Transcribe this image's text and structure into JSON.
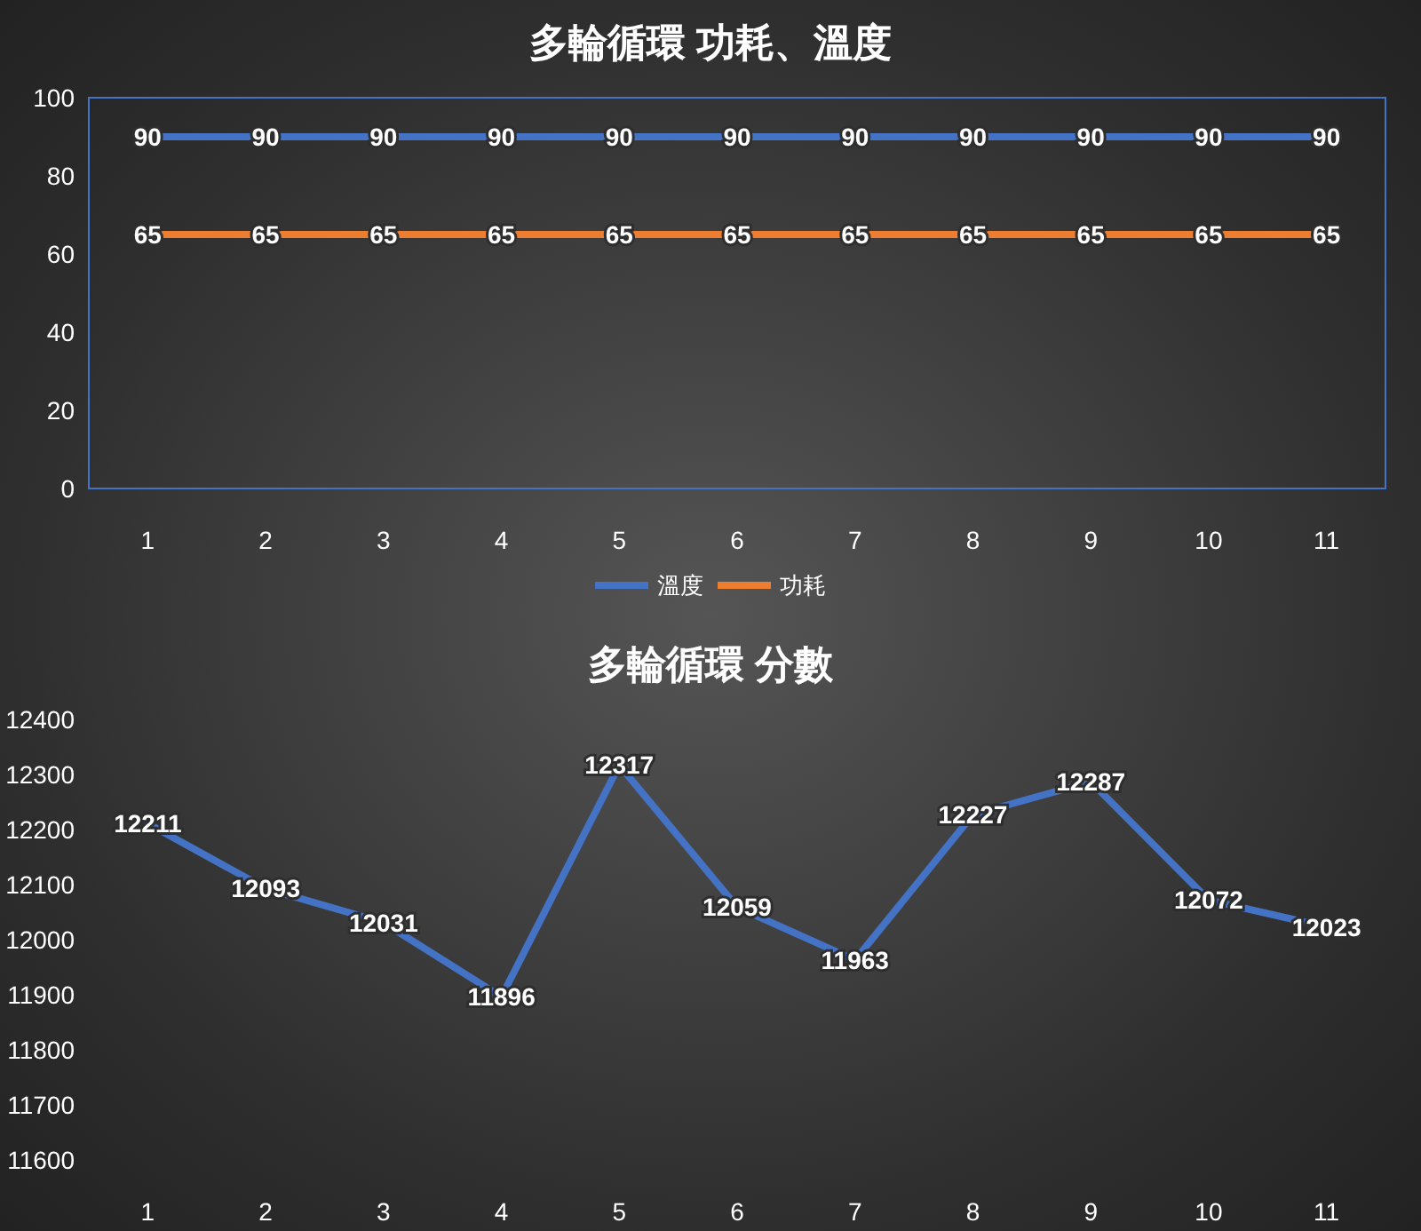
{
  "chart_data": [
    {
      "type": "line",
      "title": "多輪循環 功耗、溫度",
      "categories": [
        "1",
        "2",
        "3",
        "4",
        "5",
        "6",
        "7",
        "8",
        "9",
        "10",
        "11"
      ],
      "series": [
        {
          "name": "溫度",
          "color": "#4472c4",
          "values": [
            90,
            90,
            90,
            90,
            90,
            90,
            90,
            90,
            90,
            90,
            90
          ]
        },
        {
          "name": "功耗",
          "color": "#ed7d31",
          "values": [
            65,
            65,
            65,
            65,
            65,
            65,
            65,
            65,
            65,
            65,
            65
          ]
        }
      ],
      "ylim": [
        0,
        100
      ],
      "yticks": [
        0,
        20,
        40,
        60,
        80,
        100
      ],
      "data_labels": true,
      "legend": "bottom",
      "marker": "none",
      "line_style": "solid",
      "grid": false
    },
    {
      "type": "line",
      "title": "多輪循環 分數",
      "categories": [
        "1",
        "2",
        "3",
        "4",
        "5",
        "6",
        "7",
        "8",
        "9",
        "10",
        "11"
      ],
      "series": [
        {
          "color": "#4472c4",
          "values": [
            12211,
            12093,
            12031,
            11896,
            12317,
            12059,
            11963,
            12227,
            12287,
            12072,
            12023
          ]
        }
      ],
      "ylim": [
        11600,
        12400
      ],
      "yticks": [
        11600,
        11700,
        11800,
        11900,
        12000,
        12100,
        12200,
        12300,
        12400
      ],
      "data_labels": true,
      "legend": false,
      "marker": "none",
      "line_style": "solid",
      "grid": false
    }
  ]
}
